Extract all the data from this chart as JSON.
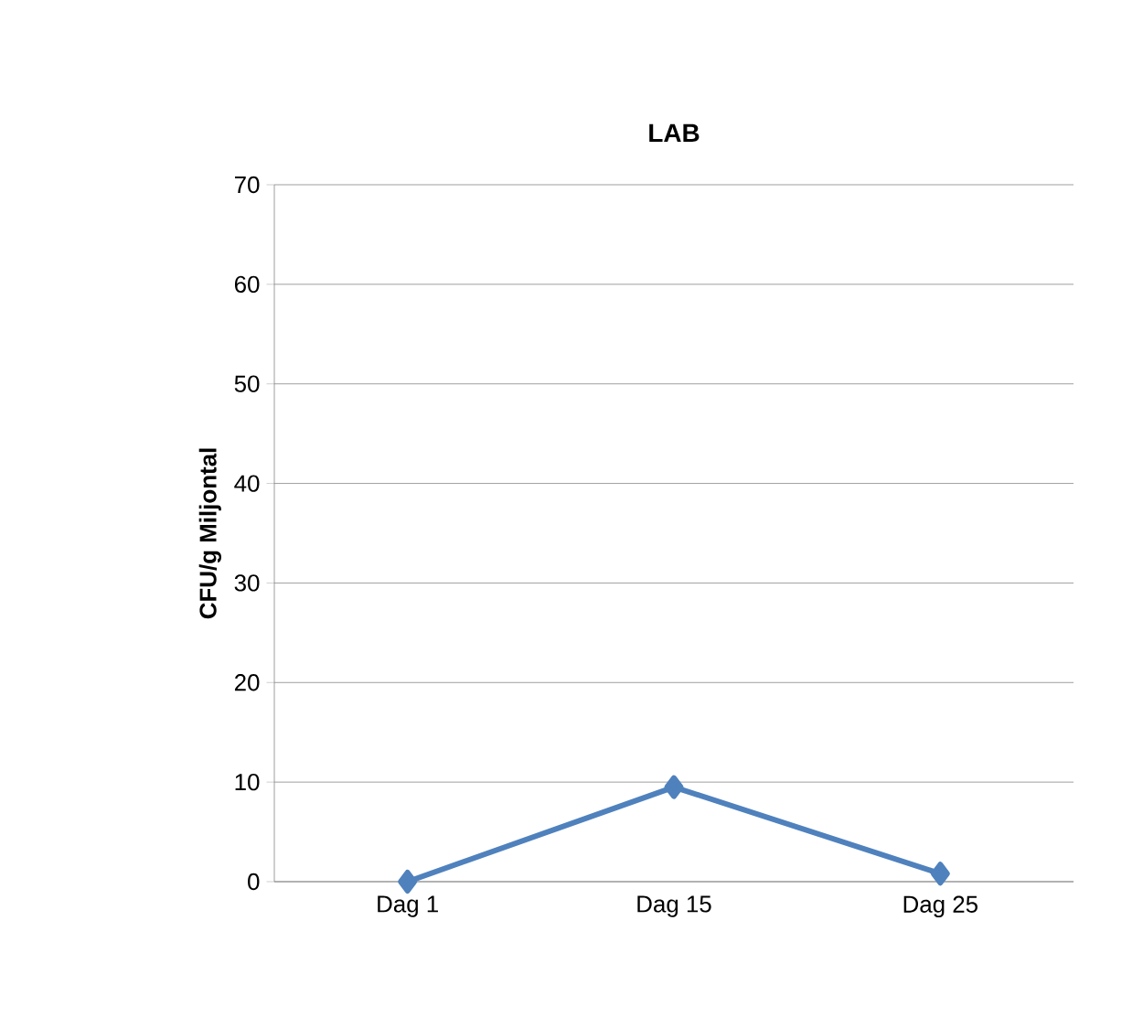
{
  "chart_data": {
    "type": "line",
    "title": "LAB",
    "ylabel": "CFU/g  Miljontal",
    "categories": [
      "Dag 1",
      "Dag 15",
      "Dag 25"
    ],
    "series": [
      {
        "color": "#4f81bd",
        "values": [
          0,
          9.5,
          0.8
        ]
      }
    ],
    "ylim": [
      0,
      70
    ],
    "yticks": [
      0,
      10,
      20,
      30,
      40,
      50,
      60,
      70
    ],
    "grid": "y",
    "marker": "diamond",
    "line_style": "solid"
  }
}
